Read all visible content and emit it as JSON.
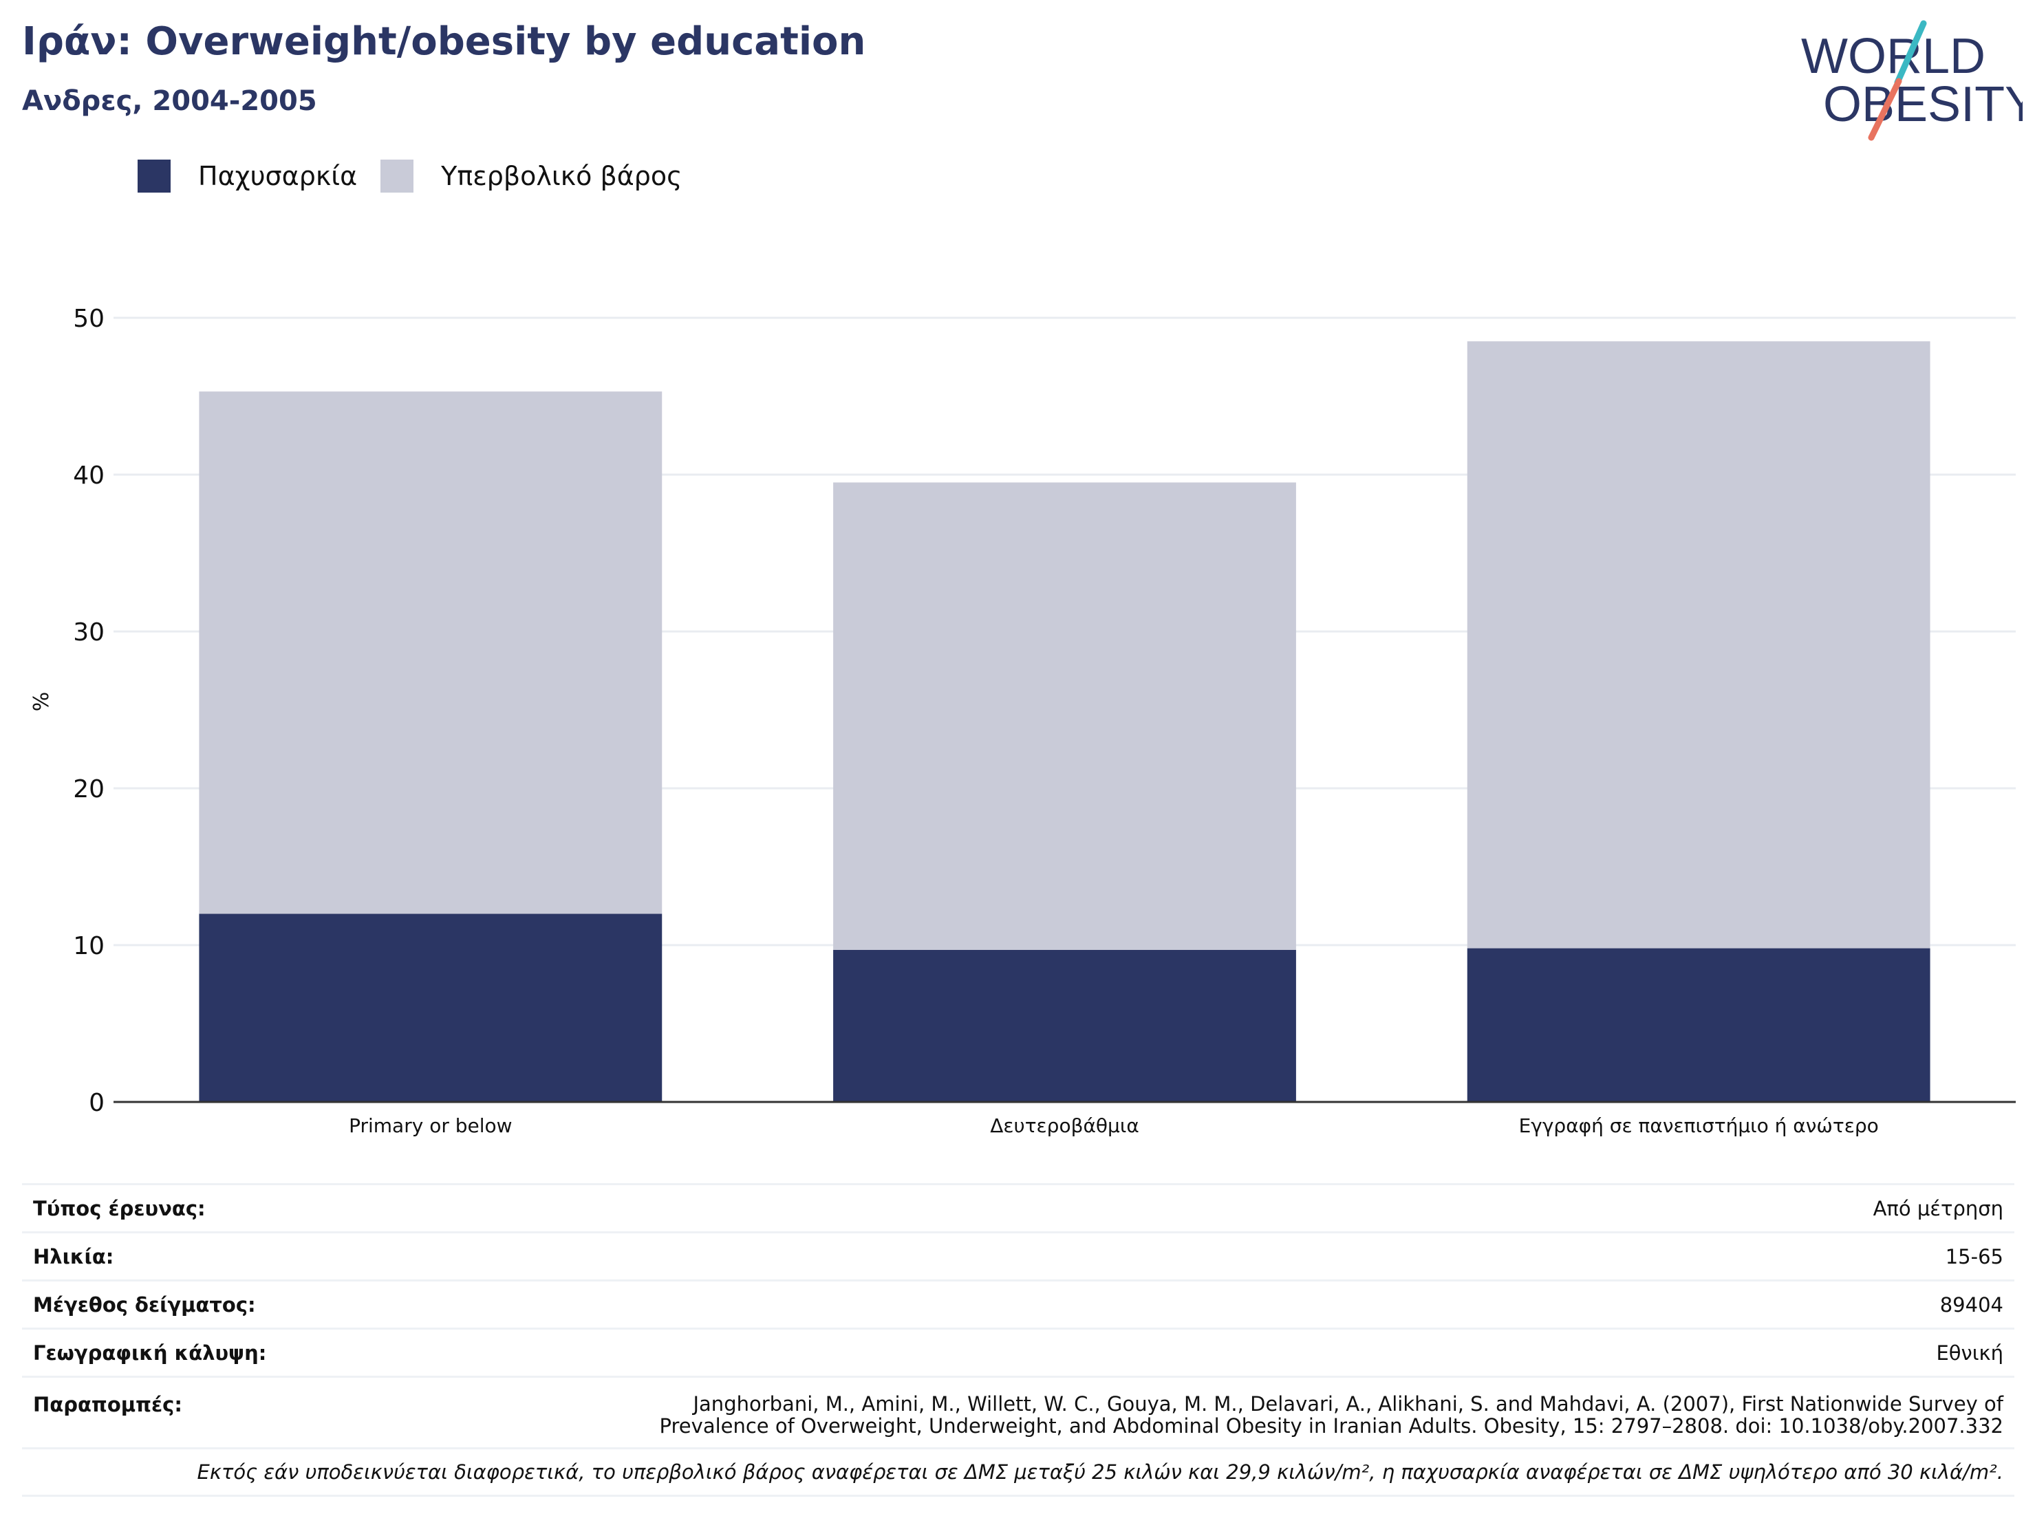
{
  "header": {
    "title": "Ιράν: Overweight/obesity by education",
    "subtitle": "Ανδρες, 2004-2005"
  },
  "logo": {
    "line1": "WORLD",
    "line2": "OBESITY",
    "colors": {
      "navy": "#2b3664",
      "teal": "#3bb8c3",
      "coral": "#e8735f"
    }
  },
  "legend": {
    "items": [
      {
        "label": "Παχυσαρκία",
        "color": "#2b3664"
      },
      {
        "label": "Υπερβολικό βάρος",
        "color": "#c9cbd8"
      }
    ]
  },
  "chart_data": {
    "type": "bar",
    "stacked": true,
    "categories": [
      "Primary or below",
      "Δευτεροβάθμια",
      "Εγγραφή σε πανεπιστήμιο ή ανώτερο"
    ],
    "series": [
      {
        "name": "Παχυσαρκία",
        "values": [
          12.0,
          9.7,
          9.8
        ],
        "color": "#2b3664"
      },
      {
        "name": "Υπερβολικό βάρος",
        "values": [
          33.3,
          29.8,
          38.7
        ],
        "color": "#c9cbd8"
      }
    ],
    "ylabel": "%",
    "ylim": [
      0,
      50
    ],
    "yticks": [
      "0",
      "10",
      "20",
      "30",
      "40",
      "50"
    ],
    "grid": true,
    "legend_position": "top-left"
  },
  "meta": {
    "survey_type": {
      "label": "Τύπος έρευνας:",
      "value": "Από μέτρηση"
    },
    "age": {
      "label": "Ηλικία:",
      "value": "15-65"
    },
    "sample_size": {
      "label": "Μέγεθος δείγματος:",
      "value": "89404"
    },
    "coverage": {
      "label": "Γεωγραφική κάλυψη:",
      "value": "Εθνική"
    },
    "references": {
      "label": "Παραπομπές:",
      "value": "Janghorbani, M., Amini, M., Willett, W. C., Gouya, M. M., Delavari, A., Alikhani, S. and Mahdavi, A. (2007), First Nationwide Survey of Prevalence of Overweight, Underweight, and Abdominal Obesity in Iranian Adults. Obesity, 15: 2797–2808. doi: 10.1038/oby.2007.332"
    },
    "note": "Εκτός εάν υποδεικνύεται διαφορετικά, το υπερβολικό βάρος αναφέρεται σε ΔΜΣ μεταξύ 25 κιλών και 29,9 κιλών/m², η παχυσαρκία αναφέρεται σε ΔΜΣ υψηλότερο από 30 κιλά/m²."
  }
}
